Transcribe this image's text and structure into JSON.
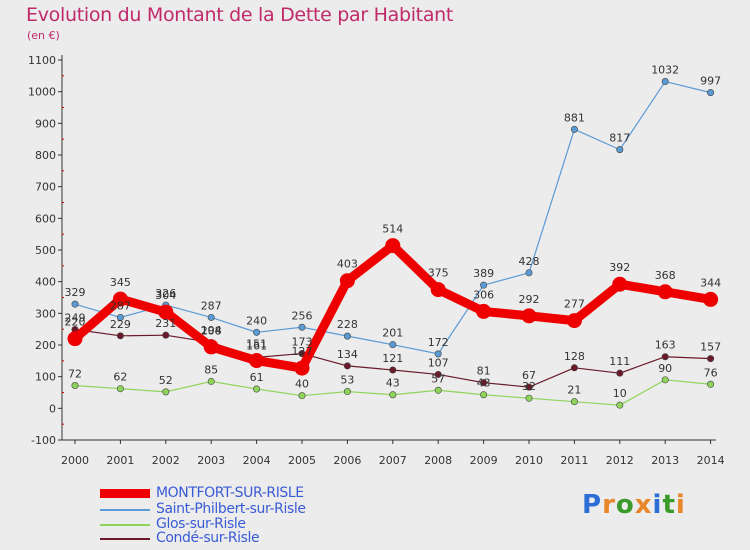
{
  "title": "Evolution du Montant de la Dette par Habitant",
  "unit": "(en €)",
  "logo": "Proxiti",
  "colors": {
    "background": "#ececec",
    "title": "#c02a6b",
    "axis": "#333333",
    "grid_tick": "#cc0000",
    "legend_text": "#3a5bd6",
    "logo_letters": [
      "#2b6fd6",
      "#e8862a",
      "#3a9a2a",
      "#e8862a",
      "#2b6fd6",
      "#3a9a2a",
      "#e8862a"
    ]
  },
  "chart_data": {
    "type": "line",
    "x": [
      "2000",
      "2001",
      "2002",
      "2003",
      "2004",
      "2005",
      "2006",
      "2007",
      "2008",
      "2009",
      "2010",
      "2011",
      "2012",
      "2013",
      "2014"
    ],
    "ylim": [
      -100,
      1100
    ],
    "yticks": [
      "-100",
      "0",
      "100",
      "200",
      "300",
      "400",
      "500",
      "600",
      "700",
      "800",
      "900",
      "1000",
      "1100"
    ],
    "legend_position": "bottom-left",
    "series": [
      {
        "name": "MONTFORT-SUR-RISLE",
        "color": "#ee0000",
        "values": [
          220,
          345,
          304,
          194,
          151,
          127,
          403,
          514,
          375,
          306,
          292,
          277,
          392,
          368,
          344
        ],
        "labels": [
          "220",
          "345",
          "304",
          "194",
          "151",
          "127",
          "403",
          "514",
          "375",
          "306",
          "292",
          "277",
          "392",
          "368",
          "344"
        ]
      },
      {
        "name": "Saint-Philbert-sur-Risle",
        "color": "#5b9bd5",
        "values": [
          329,
          287,
          326,
          287,
          240,
          256,
          228,
          201,
          172,
          389,
          428,
          881,
          817,
          1032,
          997
        ],
        "labels": [
          "329",
          "287",
          "326",
          "287",
          "240",
          "256",
          "228",
          "201",
          "172",
          "389",
          "428",
          "881",
          "817",
          "1032",
          "997"
        ]
      },
      {
        "name": "Glos-sur-Risle",
        "color": "#8fd45a",
        "values": [
          72,
          62,
          52,
          85,
          61,
          40,
          53,
          43,
          57,
          43,
          32,
          21,
          10,
          90,
          76
        ],
        "labels": [
          "72",
          "62",
          "52",
          "85",
          "61",
          "40",
          "53",
          "43",
          "57",
          "43",
          "32",
          "21",
          "10",
          "90",
          "76"
        ]
      },
      {
        "name": "Condé-sur-Risle",
        "color": "#6b1a2a",
        "values": [
          249,
          229,
          231,
          208,
          161,
          173,
          134,
          121,
          107,
          81,
          67,
          128,
          111,
          163,
          157
        ],
        "labels": [
          "249",
          "229",
          "231",
          "208",
          "161",
          "173",
          "134",
          "121",
          "107",
          "81",
          "67",
          "128",
          "111",
          "163",
          "157"
        ]
      }
    ]
  }
}
